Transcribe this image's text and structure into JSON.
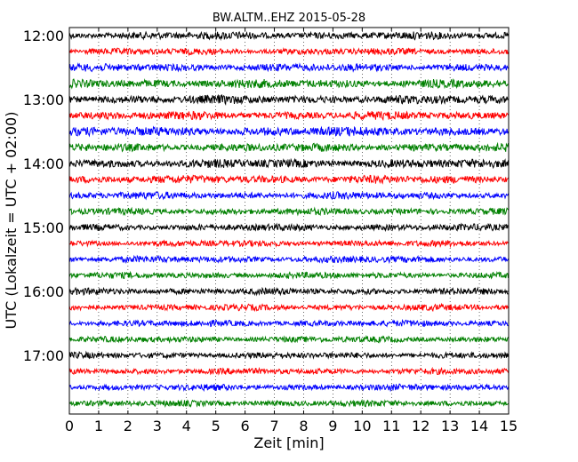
{
  "chart_data": {
    "type": "line",
    "title": "BW.ALTM..EHZ 2015-05-28",
    "xlabel": "Zeit  [min]",
    "ylabel": "UTC (Lokalzeit = UTC + 02:00)",
    "xlim": [
      0,
      15
    ],
    "x_ticks": [
      "0",
      "1",
      "2",
      "3",
      "4",
      "5",
      "6",
      "7",
      "8",
      "9",
      "10",
      "11",
      "12",
      "13",
      "14",
      "15"
    ],
    "y_tick_labels": [
      "12:00",
      "13:00",
      "14:00",
      "15:00",
      "16:00",
      "17:00"
    ],
    "grid": true,
    "trace_colors": [
      "#000000",
      "#ff0000",
      "#0000ff",
      "#008000"
    ],
    "traces": [
      {
        "start": "12:00",
        "level": 0.45
      },
      {
        "start": "12:15",
        "level": 0.35
      },
      {
        "start": "12:30",
        "level": 0.45
      },
      {
        "start": "12:45",
        "level": 0.55
      },
      {
        "start": "13:00",
        "level": 0.55
      },
      {
        "start": "13:15",
        "level": 0.5
      },
      {
        "start": "13:30",
        "level": 0.6
      },
      {
        "start": "13:45",
        "level": 0.5
      },
      {
        "start": "14:00",
        "level": 0.55
      },
      {
        "start": "14:15",
        "level": 0.5
      },
      {
        "start": "14:30",
        "level": 0.4
      },
      {
        "start": "14:45",
        "level": 0.35
      },
      {
        "start": "15:00",
        "level": 0.35
      },
      {
        "start": "15:15",
        "level": 0.3
      },
      {
        "start": "15:30",
        "level": 0.35
      },
      {
        "start": "15:45",
        "level": 0.3
      },
      {
        "start": "16:00",
        "level": 0.35
      },
      {
        "start": "16:15",
        "level": 0.3
      },
      {
        "start": "16:30",
        "level": 0.3
      },
      {
        "start": "16:45",
        "level": 0.3
      },
      {
        "start": "17:00",
        "level": 0.3
      },
      {
        "start": "17:15",
        "level": 0.3
      },
      {
        "start": "17:30",
        "level": 0.3
      },
      {
        "start": "17:45",
        "level": 0.3
      }
    ]
  }
}
